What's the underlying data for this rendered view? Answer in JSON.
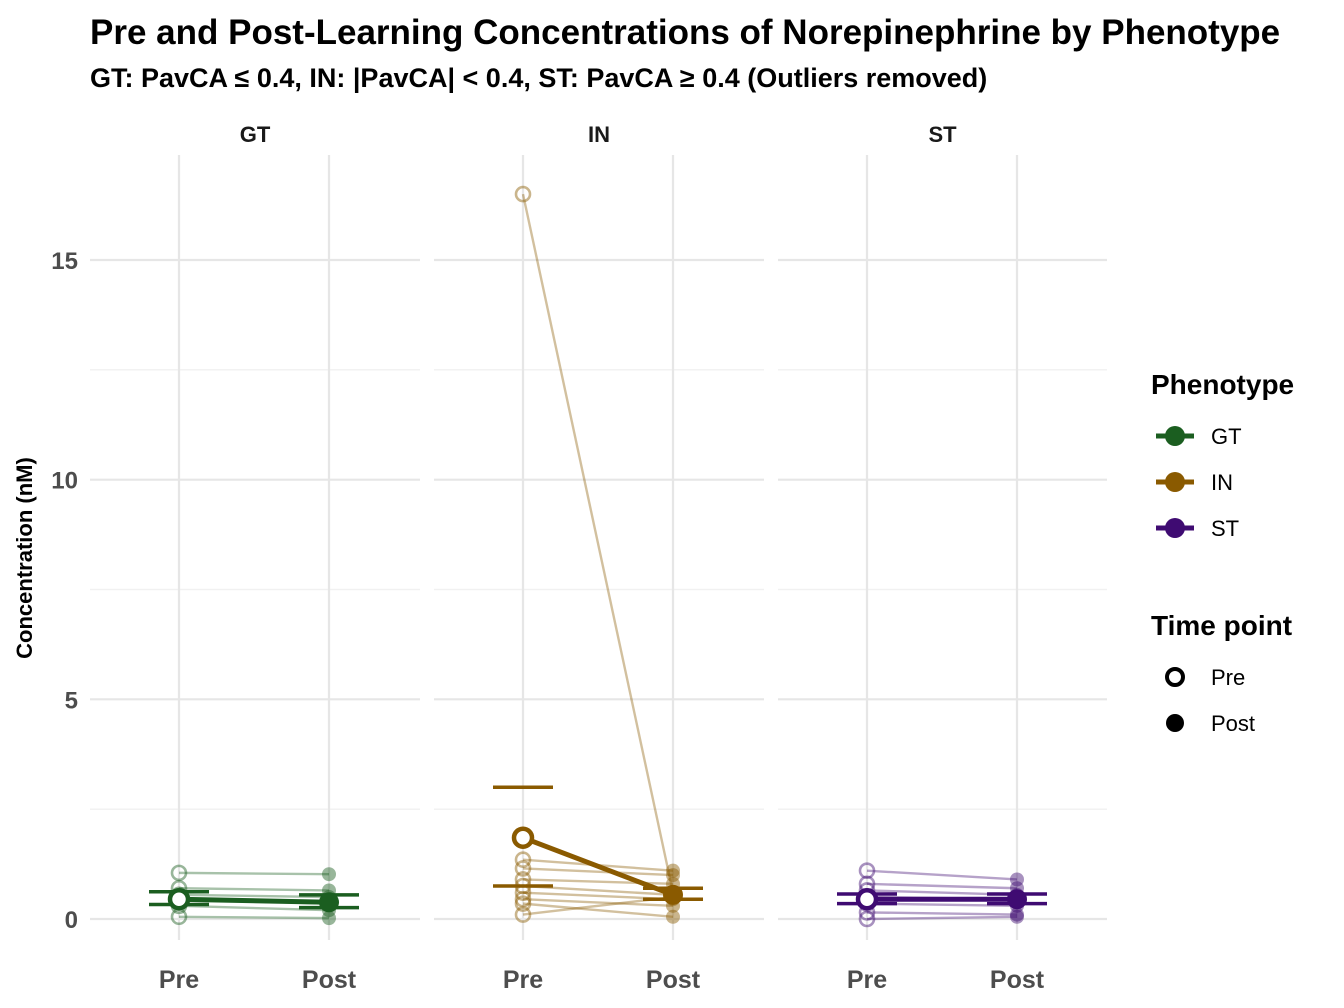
{
  "chart_data": {
    "type": "line",
    "title": "Pre and Post-Learning Concentrations of Norepinephrine by Phenotype",
    "subtitle": "GT: PavCA ≤ 0.4, IN: |PavCA| < 0.4, ST: PavCA ≥ 0.4 (Outliers removed)",
    "ylabel": "Concentration (nM)",
    "xlabel": "",
    "ylim": [
      -0.5,
      17.2
    ],
    "y_ticks": [
      0,
      5,
      10,
      15
    ],
    "categories": [
      "Pre",
      "Post"
    ],
    "grid": true,
    "panels": [
      {
        "name": "GT",
        "color": "#1b5e20",
        "subjects": [
          [
            1.05,
            1.02
          ],
          [
            0.7,
            0.65
          ],
          [
            0.55,
            0.5
          ],
          [
            0.45,
            0.35
          ],
          [
            0.3,
            0.2
          ],
          [
            0.05,
            0.02
          ]
        ],
        "mean": [
          0.45,
          0.38
        ],
        "error_bar": [
          [
            0.33,
            0.26
          ],
          [
            0.62,
            0.55
          ]
        ]
      },
      {
        "name": "IN",
        "color": "#8a5a00",
        "subjects": [
          [
            16.5,
            0.6
          ],
          [
            1.35,
            1.1
          ],
          [
            1.15,
            1.0
          ],
          [
            0.9,
            0.8
          ],
          [
            0.75,
            0.55
          ],
          [
            0.6,
            0.45
          ],
          [
            0.45,
            0.3
          ],
          [
            0.35,
            0.05
          ],
          [
            0.1,
            0.5
          ]
        ],
        "mean": [
          1.85,
          0.55
        ],
        "error_bar": [
          [
            0.75,
            0.45
          ],
          [
            3.0,
            0.7
          ]
        ]
      },
      {
        "name": "ST",
        "color": "#3f0b72",
        "subjects": [
          [
            1.1,
            0.9
          ],
          [
            0.8,
            0.7
          ],
          [
            0.65,
            0.55
          ],
          [
            0.5,
            0.45
          ],
          [
            0.35,
            0.3
          ],
          [
            0.15,
            0.1
          ],
          [
            0.0,
            0.05
          ]
        ],
        "mean": [
          0.45,
          0.45
        ],
        "error_bar": [
          [
            0.35,
            0.35
          ],
          [
            0.57,
            0.57
          ]
        ]
      }
    ],
    "legend": {
      "placement": "right",
      "phenotype_title": "Phenotype",
      "phenotype_items": [
        {
          "label": "GT",
          "color": "#1b5e20"
        },
        {
          "label": "IN",
          "color": "#8a5a00"
        },
        {
          "label": "ST",
          "color": "#3f0b72"
        }
      ],
      "timepoint_title": "Time point",
      "timepoint_items": [
        {
          "label": "Pre",
          "shape": "open-circle"
        },
        {
          "label": "Post",
          "shape": "filled-circle"
        }
      ]
    }
  }
}
